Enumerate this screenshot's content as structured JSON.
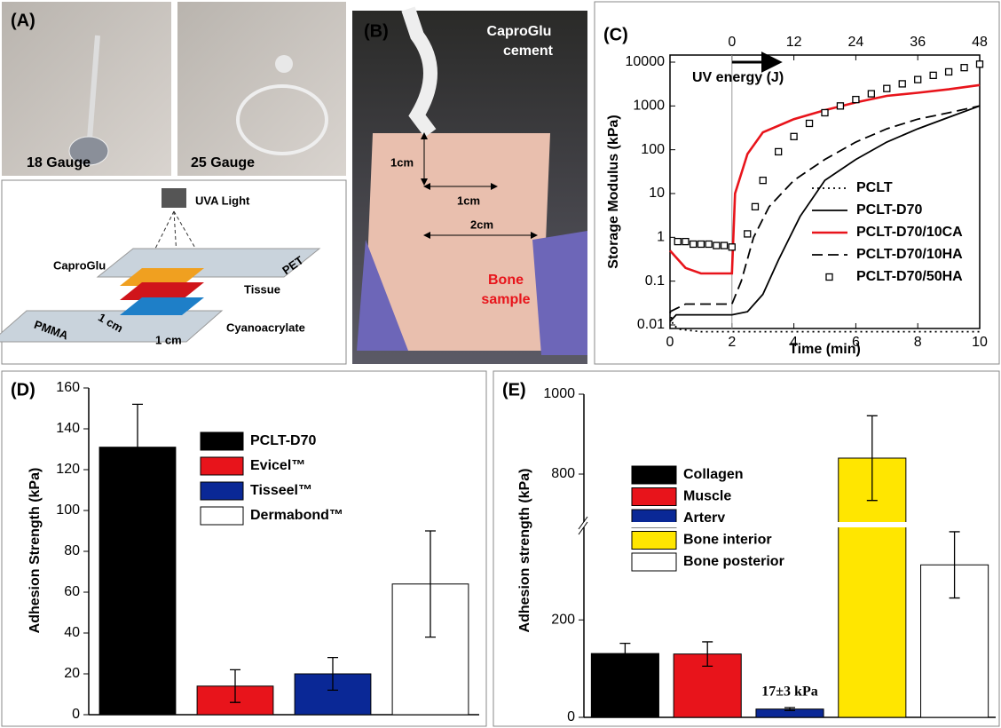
{
  "figure": {
    "panel_labels": [
      "(A)",
      "(B)"
    ],
    "photo_a": {
      "left": "18 Gauge",
      "right": "25 Gauge"
    },
    "diagram": {
      "light": "UVA Light",
      "top": "PET",
      "glue": "CaproGlu",
      "tissue": "Tissue",
      "base": "PMMA",
      "width": "1 cm",
      "length": "1 cm",
      "bond": "Cyanoacrylate"
    },
    "photo_b": {
      "cement_1": "CaproGlu",
      "cement_2": "cement",
      "dim_1": "1cm",
      "dim_2": "1cm",
      "dim_3": "2cm",
      "sample_1": "Bone",
      "sample_2": "sample"
    }
  },
  "chart_data": [
    {
      "type": "line",
      "panel_label": "(C)",
      "xlabel": "Time (min)",
      "ylabel": "Storage Modulus (kPa)",
      "x2label": "UV energy (J)",
      "xlim": [
        0,
        10
      ],
      "xticks": [
        0,
        2,
        4,
        6,
        8,
        10
      ],
      "x2lim": [
        -12,
        48
      ],
      "x2ticks": [
        0,
        12,
        24,
        36,
        48
      ],
      "ylim": [
        0.01,
        10000
      ],
      "ylog": true,
      "yticks": [
        0.01,
        0.1,
        1,
        10,
        100,
        1000,
        10000
      ],
      "series": [
        {
          "name": "PCLT",
          "color": "#000000",
          "style": "dotted",
          "x": [
            0,
            0.1,
            0.3,
            1,
            2,
            3,
            4,
            5,
            6,
            7,
            8,
            9,
            10
          ],
          "values": [
            0.02,
            0.01,
            0.008,
            0.007,
            0.007,
            0.007,
            0.007,
            0.007,
            0.007,
            0.007,
            0.007,
            0.007,
            0.007
          ]
        },
        {
          "name": "PCLT-D70",
          "color": "#000000",
          "style": "solid",
          "x": [
            0,
            0.2,
            1,
            2,
            2.5,
            3,
            3.5,
            4.2,
            5,
            6,
            7,
            8,
            9,
            10
          ],
          "values": [
            0.012,
            0.017,
            0.017,
            0.017,
            0.02,
            0.05,
            0.3,
            3,
            20,
            60,
            150,
            300,
            550,
            1000
          ]
        },
        {
          "name": "PCLT-D70/10CA",
          "color": "#e8141b",
          "style": "solid",
          "x": [
            0,
            0.5,
            1,
            2,
            2.1,
            2.5,
            3,
            4,
            5,
            6,
            7,
            8,
            9,
            10
          ],
          "values": [
            0.5,
            0.2,
            0.15,
            0.15,
            10,
            80,
            250,
            500,
            800,
            1200,
            1700,
            2000,
            2400,
            3000
          ]
        },
        {
          "name": "PCLT-D70/10HA",
          "color": "#000000",
          "style": "dashed",
          "x": [
            0,
            0.5,
            2,
            2.3,
            2.7,
            3.2,
            4,
            5,
            6,
            7,
            8,
            9,
            10
          ],
          "values": [
            0.02,
            0.03,
            0.03,
            0.1,
            1,
            5,
            20,
            60,
            150,
            300,
            500,
            700,
            1000
          ]
        },
        {
          "name": "PCLT-D70/50HA",
          "color": "#000000",
          "style": "markers",
          "x": [
            0.25,
            0.5,
            0.75,
            1,
            1.25,
            1.5,
            1.75,
            2,
            2.5,
            2.75,
            3,
            3.5,
            4,
            4.5,
            5,
            5.5,
            6,
            6.5,
            7,
            7.5,
            8,
            8.5,
            9,
            9.5,
            10
          ],
          "values": [
            0.8,
            0.8,
            0.7,
            0.7,
            0.7,
            0.65,
            0.65,
            0.6,
            1.2,
            5,
            20,
            90,
            200,
            400,
            700,
            1000,
            1400,
            1900,
            2500,
            3200,
            4000,
            5000,
            6000,
            7500,
            9000
          ]
        }
      ]
    },
    {
      "type": "bar",
      "panel_label": "(D)",
      "ylabel": "Adhesion Strength (kPa)",
      "ylim": [
        0,
        160
      ],
      "yticks": [
        0,
        20,
        40,
        60,
        80,
        100,
        120,
        140,
        160
      ],
      "series": [
        {
          "name": "PCLT-D70",
          "color": "#000000",
          "values": [
            131
          ],
          "errors": [
            21
          ]
        },
        {
          "name": "Evicel™",
          "color": "#e8141b",
          "values": [
            14
          ],
          "errors": [
            8
          ]
        },
        {
          "name": "Tisseel™",
          "color": "#0a2896",
          "values": [
            20
          ],
          "errors": [
            8
          ]
        },
        {
          "name": "Dermabond™",
          "color": "#ffffff",
          "values": [
            64
          ],
          "errors": [
            26
          ]
        }
      ]
    },
    {
      "type": "bar",
      "panel_label": "(E)",
      "ylabel": "Adhesion strength (kPa)",
      "ylim": [
        0,
        1000
      ],
      "ybreak": [
        390,
        680
      ],
      "yticks": [
        0,
        200,
        800,
        1000
      ],
      "annotation": "17±3 kPa",
      "series": [
        {
          "name": "Collagen",
          "color": "#000000",
          "values": [
            131
          ],
          "errors": [
            21
          ]
        },
        {
          "name": "Muscle",
          "color": "#e8141b",
          "values": [
            130
          ],
          "errors": [
            25
          ]
        },
        {
          "name": "Artery",
          "color": "#0a2896",
          "values": [
            17
          ],
          "errors": [
            3
          ]
        },
        {
          "name": "Bone interior",
          "color": "#ffe600",
          "values": [
            840
          ],
          "errors": [
            106
          ]
        },
        {
          "name": "Bone posterior",
          "color": "#ffffff",
          "values": [
            313
          ],
          "errors": [
            68
          ]
        }
      ]
    }
  ]
}
